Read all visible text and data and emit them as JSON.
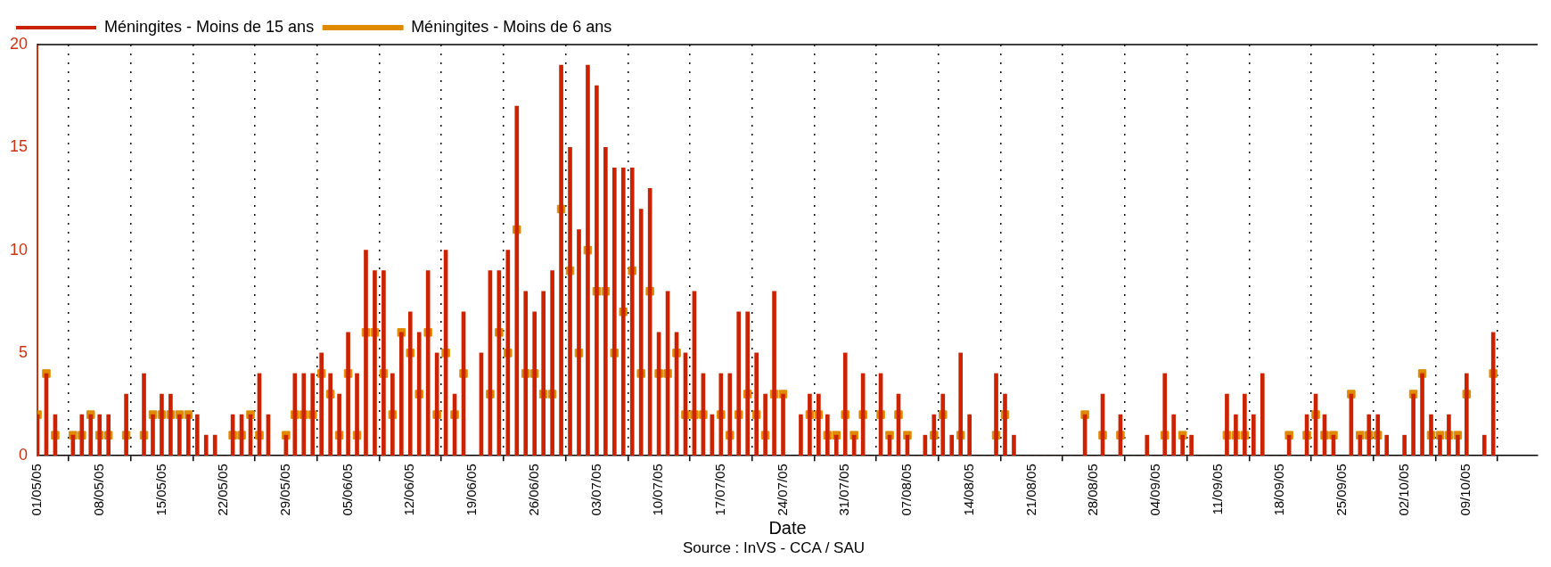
{
  "chart_data": {
    "type": "bar",
    "xlabel": "Date",
    "annotations": [
      "Source : InVS - CCA / SAU"
    ],
    "x": [
      "--05-01",
      "--05-02",
      "--05-03",
      "--05-04",
      "--05-05",
      "--05-06",
      "--05-07",
      "--05-08",
      "--05-09",
      "--05-10",
      "--05-11",
      "--05-12",
      "--05-13",
      "--05-14",
      "--05-15",
      "--05-16",
      "--05-17",
      "--05-18",
      "--05-19",
      "--05-20",
      "--05-21",
      "--05-22",
      "--05-23",
      "--05-24",
      "--05-25",
      "--05-26",
      "--05-27",
      "--05-28",
      "--05-29",
      "--05-30",
      "--05-31",
      "--06-01",
      "--06-02",
      "--06-03",
      "--06-04",
      "--06-05",
      "--06-06",
      "--06-07",
      "--06-08",
      "--06-09",
      "--06-10",
      "--06-11",
      "--06-12",
      "--06-13",
      "--06-14",
      "--06-15",
      "--06-16",
      "--06-17",
      "--06-18",
      "--06-19",
      "--06-20",
      "--06-21",
      "--06-22",
      "--06-23",
      "--06-24",
      "--06-25",
      "--06-26",
      "--06-27",
      "--06-28",
      "--06-29",
      "--06-30",
      "--07-01",
      "--07-02",
      "--07-03",
      "--07-04",
      "--07-05",
      "--07-06",
      "--07-07",
      "--07-08",
      "--07-09",
      "--07-10",
      "--07-11",
      "--07-12",
      "--07-13",
      "--07-14",
      "--07-15",
      "--07-16",
      "--07-17",
      "--07-18",
      "--07-19",
      "--07-20",
      "--07-21",
      "--07-22",
      "--07-23",
      "--07-24",
      "--07-25",
      "--07-26",
      "--07-27",
      "--07-28",
      "--07-29",
      "--07-30",
      "--07-31",
      "--08-01",
      "--08-02",
      "--08-03",
      "--08-04",
      "--08-05",
      "--08-06",
      "--08-07",
      "--08-08",
      "--08-09",
      "--08-10",
      "--08-11",
      "--08-12",
      "--08-13",
      "--08-14",
      "--08-15",
      "--08-16",
      "--08-17",
      "--08-18",
      "--08-19",
      "--08-20",
      "--08-21",
      "--08-22",
      "--08-23",
      "--08-24",
      "--08-25",
      "--08-26",
      "--08-27",
      "--08-28",
      "--08-29",
      "--08-30",
      "--08-31",
      "--09-01",
      "--09-02",
      "--09-03",
      "--09-04",
      "--09-05",
      "--09-06",
      "--09-07",
      "--09-08",
      "--09-09",
      "--09-10",
      "--09-11",
      "--09-12",
      "--09-13",
      "--09-14",
      "--09-15",
      "--09-16",
      "--09-17",
      "--09-18",
      "--09-19",
      "--09-20",
      "--09-21",
      "--09-22",
      "--09-23",
      "--09-24",
      "--09-25",
      "--09-26",
      "--09-27",
      "--09-28",
      "--09-29",
      "--09-30",
      "--10-01",
      "--10-02",
      "--10-03",
      "--10-04",
      "--10-05",
      "--10-06",
      "--10-07",
      "--10-08",
      "--10-09",
      "--10-10",
      "--10-11",
      "--10-12"
    ],
    "series": [
      {
        "name": "Méningites - Moins de 15 ans",
        "color": "#cc2200",
        "values": [
          2,
          4,
          2,
          0,
          1,
          2,
          2,
          2,
          2,
          0,
          3,
          0,
          4,
          2,
          3,
          3,
          2,
          2,
          2,
          1,
          1,
          0,
          2,
          2,
          2,
          4,
          2,
          0,
          1,
          4,
          4,
          4,
          5,
          4,
          3,
          6,
          4,
          10,
          9,
          9,
          4,
          6,
          7,
          6,
          9,
          5,
          10,
          3,
          7,
          0,
          5,
          9,
          9,
          10,
          17,
          8,
          7,
          8,
          9,
          19,
          15,
          11,
          19,
          18,
          15,
          14,
          14,
          14,
          12,
          13,
          6,
          8,
          6,
          5,
          8,
          4,
          2,
          4,
          4,
          7,
          7,
          5,
          3,
          8,
          3,
          0,
          2,
          3,
          3,
          2,
          1,
          5,
          1,
          4,
          0,
          4,
          1,
          3,
          1,
          0,
          1,
          2,
          3,
          1,
          5,
          2,
          0,
          0,
          4,
          3,
          1,
          0,
          0,
          0,
          0,
          0,
          0,
          0,
          2,
          0,
          3,
          0,
          2,
          0,
          0,
          1,
          0,
          4,
          2,
          1,
          1,
          0,
          0,
          0,
          3,
          2,
          3,
          2,
          4,
          0,
          0,
          1,
          0,
          2,
          3,
          2,
          1,
          0,
          3,
          1,
          2,
          2,
          1,
          0,
          1,
          3,
          4,
          2,
          1,
          2,
          1,
          4,
          0,
          1,
          6
        ]
      },
      {
        "name": "Méningites - Moins de 6 ans",
        "type": "scatter",
        "color": "#e08a00",
        "values": [
          2,
          4,
          1,
          null,
          1,
          1,
          2,
          1,
          1,
          null,
          1,
          null,
          1,
          2,
          2,
          2,
          2,
          2,
          null,
          null,
          null,
          null,
          1,
          1,
          2,
          1,
          null,
          null,
          1,
          2,
          2,
          2,
          4,
          3,
          1,
          4,
          1,
          6,
          6,
          4,
          2,
          6,
          5,
          3,
          6,
          2,
          5,
          2,
          4,
          null,
          null,
          3,
          6,
          5,
          11,
          4,
          4,
          3,
          3,
          12,
          9,
          5,
          10,
          8,
          8,
          5,
          7,
          9,
          4,
          8,
          4,
          4,
          5,
          2,
          2,
          2,
          null,
          2,
          1,
          2,
          3,
          2,
          1,
          3,
          3,
          null,
          null,
          2,
          2,
          1,
          1,
          2,
          1,
          2,
          null,
          2,
          1,
          2,
          1,
          null,
          null,
          1,
          2,
          null,
          1,
          null,
          null,
          null,
          1,
          2,
          null,
          null,
          null,
          null,
          null,
          null,
          null,
          null,
          2,
          null,
          1,
          null,
          1,
          null,
          null,
          null,
          null,
          1,
          null,
          1,
          null,
          null,
          null,
          null,
          1,
          1,
          1,
          null,
          null,
          null,
          null,
          1,
          null,
          1,
          2,
          1,
          1,
          null,
          3,
          1,
          1,
          1,
          null,
          null,
          null,
          3,
          4,
          1,
          1,
          1,
          1,
          3,
          null,
          null,
          4
        ]
      }
    ],
    "marker": "square",
    "xlim": [
      "--05-01",
      "--10-17"
    ],
    "xticks": [
      {
        "value": "--05-01",
        "label": "01/05/05"
      },
      {
        "value": "--05-08",
        "label": "08/05/05"
      },
      {
        "value": "--05-15",
        "label": "15/05/05"
      },
      {
        "value": "--05-22",
        "label": "22/05/05"
      },
      {
        "value": "--05-29",
        "label": "29/05/05"
      },
      {
        "value": "--06-05",
        "label": "05/06/05"
      },
      {
        "value": "--06-12",
        "label": "12/06/05"
      },
      {
        "value": "--06-19",
        "label": "19/06/05"
      },
      {
        "value": "--06-26",
        "label": "26/06/05"
      },
      {
        "value": "--07-03",
        "label": "03/07/05"
      },
      {
        "value": "--07-10",
        "label": "10/07/05"
      },
      {
        "value": "--07-17",
        "label": "17/07/05"
      },
      {
        "value": "--07-24",
        "label": "24/07/05"
      },
      {
        "value": "--07-31",
        "label": "31/07/05"
      },
      {
        "value": "--08-07",
        "label": "07/08/05"
      },
      {
        "value": "--08-14",
        "label": "14/08/05"
      },
      {
        "value": "--08-21",
        "label": "21/08/05"
      },
      {
        "value": "--08-28",
        "label": "28/08/05"
      },
      {
        "value": "--09-04",
        "label": "04/09/05"
      },
      {
        "value": "--09-11",
        "label": "11/09/05"
      },
      {
        "value": "--09-18",
        "label": "18/09/05"
      },
      {
        "value": "--09-25",
        "label": "25/09/05"
      },
      {
        "value": "--10-02",
        "label": "02/10/05"
      },
      {
        "value": "--10-09",
        "label": "09/10/05"
      }
    ],
    "ylim": [
      0,
      20
    ],
    "yticks": [
      0,
      5,
      10,
      15,
      20
    ],
    "grid": "x",
    "legend": "top left"
  }
}
